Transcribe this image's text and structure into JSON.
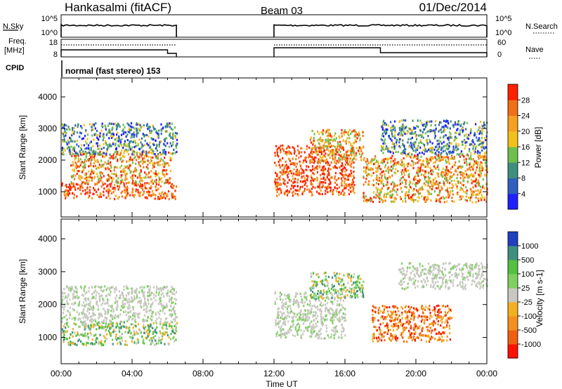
{
  "chart_data": [
    {
      "type": "table",
      "header": {
        "station": "Hankasalmi (fitACF)",
        "beam": "Beam 03",
        "date": "01/Dec/2014"
      },
      "sky_panel": {
        "left_label": "N.Sky",
        "right_label": "N.Search",
        "left_ticks": [
          "10^5",
          "10^0"
        ],
        "right_ticks": [
          "10^5",
          "10^0"
        ],
        "operating_intervals_hours": [
          [
            0.0,
            6.5
          ],
          [
            12.0,
            24.0
          ]
        ]
      },
      "freq_panel": {
        "left_label_lines": [
          "Freq.",
          "[MHz]"
        ],
        "right_label": "Nave",
        "left_ticks": [
          "18",
          "8"
        ],
        "right_ticks": [
          "60",
          "0"
        ],
        "operating_intervals_hours": [
          [
            0.0,
            6.5
          ],
          [
            12.0,
            24.0
          ]
        ],
        "freq_step_hour": 18.0
      },
      "cpid": {
        "label": "CPID",
        "value": "normal (fast stereo) 153"
      }
    },
    {
      "type": "heatmap",
      "panel": "power",
      "ylabel": "Slant Range [km]",
      "ylim": [
        200,
        4600
      ],
      "y_ticks": [
        "1000",
        "2000",
        "3000",
        "4000"
      ],
      "xlim": [
        0,
        24
      ],
      "colorbar_label": "Power [dB]",
      "colorbar_ticks": [
        "4",
        "8",
        "12",
        "16",
        "20",
        "24",
        "28"
      ],
      "colorbar_colors": [
        "#1f1fff",
        "#2f5fbf",
        "#3f8f7f",
        "#6fbf4f",
        "#f2c01a",
        "#f5a020",
        "#f07018",
        "#ff2000"
      ],
      "scatter_regions": [
        {
          "t0": 0.0,
          "t1": 6.5,
          "r0": 800,
          "r1": 1300,
          "level": "high"
        },
        {
          "t0": 0.5,
          "t1": 6.2,
          "r0": 1300,
          "r1": 2300,
          "level": "mid"
        },
        {
          "t0": 0.0,
          "t1": 6.5,
          "r0": 2200,
          "r1": 3200,
          "level": "low"
        },
        {
          "t0": 12.0,
          "t1": 16.5,
          "r0": 900,
          "r1": 2500,
          "level": "high"
        },
        {
          "t0": 14.0,
          "t1": 17.0,
          "r0": 2000,
          "r1": 3000,
          "level": "mid"
        },
        {
          "t0": 17.0,
          "t1": 24.0,
          "r0": 700,
          "r1": 2200,
          "level": "mid"
        },
        {
          "t0": 18.0,
          "t1": 24.0,
          "r0": 2200,
          "r1": 3300,
          "level": "low"
        }
      ]
    },
    {
      "type": "heatmap",
      "panel": "velocity",
      "ylabel": "Slant Range [km]",
      "ylim": [
        200,
        4600
      ],
      "y_ticks": [
        "1000",
        "2000",
        "3000",
        "4000"
      ],
      "xlim": [
        0,
        24
      ],
      "x_ticks": [
        "00:00",
        "04:00",
        "08:00",
        "12:00",
        "16:00",
        "20:00",
        "00:00"
      ],
      "xlabel": "Time UT",
      "colorbar_label": "Velocity [m s-1]",
      "colorbar_ticks": [
        "1000",
        "500",
        "100",
        "25",
        "-25",
        "-100",
        "-500",
        "-1000"
      ],
      "colorbar_colors": [
        "#2040c0",
        "#3f8f7f",
        "#55c040",
        "#7fd060",
        "#c8c8c0",
        "#f2b020",
        "#f59020",
        "#f06010",
        "#ff1000"
      ],
      "scatter_regions": [
        {
          "t0": 0.0,
          "t1": 6.5,
          "r0": 800,
          "r1": 1500,
          "level": "mixed_green_orange"
        },
        {
          "t0": 0.0,
          "t1": 6.5,
          "r0": 1500,
          "r1": 2600,
          "level": "grey"
        },
        {
          "t0": 12.0,
          "t1": 16.0,
          "r0": 1000,
          "r1": 2400,
          "level": "grey"
        },
        {
          "t0": 14.0,
          "t1": 17.0,
          "r0": 2200,
          "r1": 3000,
          "level": "mixed_green_orange"
        },
        {
          "t0": 17.5,
          "t1": 22.0,
          "r0": 900,
          "r1": 2000,
          "level": "orange_red"
        },
        {
          "t0": 19.0,
          "t1": 24.0,
          "r0": 2500,
          "r1": 3300,
          "level": "grey"
        }
      ]
    }
  ]
}
